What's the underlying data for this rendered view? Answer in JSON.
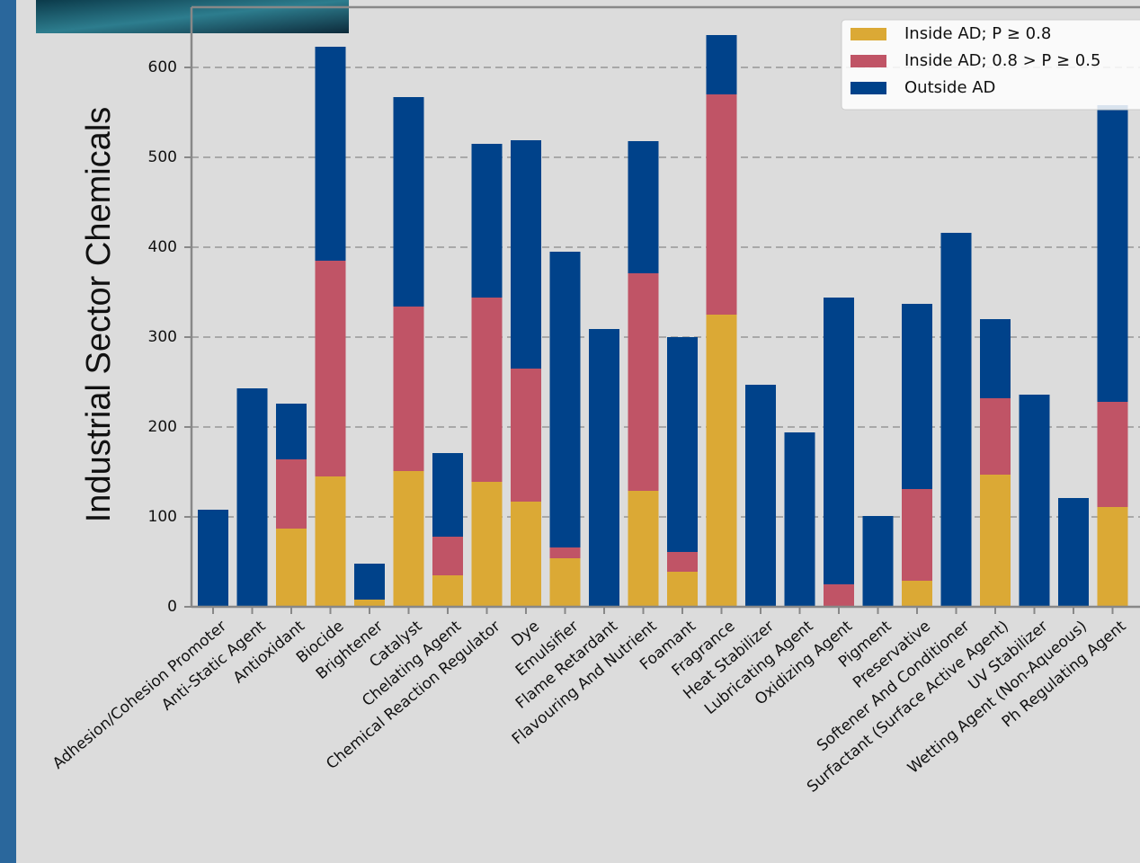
{
  "chart_data": {
    "type": "stacked-bar",
    "ylabel": "Industrial Sector Chemicals",
    "categories": [
      "Adhesion/Cohesion Promoter",
      "Anti-Static Agent",
      "Antioxidant",
      "Biocide",
      "Brightener",
      "Catalyst",
      "Chelating Agent",
      "Chemical Reaction Regulator",
      "Dye",
      "Emulsifier",
      "Flame Retardant",
      "Flavouring And Nutrient",
      "Foamant",
      "Fragrance",
      "Heat Stabilizer",
      "Lubricating Agent",
      "Oxidizing Agent",
      "Pigment",
      "Preservative",
      "Softener And Conditioner",
      "Surfactant (Surface Active Agent)",
      "UV Stabilizer",
      "Wetting Agent (Non-Aqueous)",
      "Ph Regulating Agent"
    ],
    "series": [
      {
        "name": "Inside AD; P ≥ 0.8",
        "color": "#dba935",
        "values": [
          0,
          0,
          87,
          145,
          8,
          151,
          35,
          139,
          117,
          54,
          0,
          129,
          39,
          325,
          0,
          0,
          0,
          0,
          29,
          0,
          147,
          0,
          0,
          111
        ]
      },
      {
        "name": "Inside AD; 0.8 > P ≥ 0.5",
        "color": "#c05466",
        "values": [
          0,
          0,
          77,
          240,
          0,
          183,
          43,
          205,
          148,
          12,
          0,
          242,
          22,
          245,
          0,
          0,
          25,
          0,
          102,
          0,
          85,
          0,
          0,
          117
        ]
      },
      {
        "name": "Outside AD",
        "color": "#00428a",
        "values": [
          108,
          243,
          62,
          238,
          40,
          233,
          93,
          171,
          254,
          329,
          309,
          147,
          239,
          66,
          247,
          194,
          319,
          101,
          206,
          416,
          88,
          236,
          121,
          330
        ]
      }
    ],
    "ylim": [
      0,
      667
    ],
    "yticks": [
      0,
      100,
      200,
      300,
      400,
      500,
      600
    ],
    "grid": true,
    "legend": "upper right"
  }
}
